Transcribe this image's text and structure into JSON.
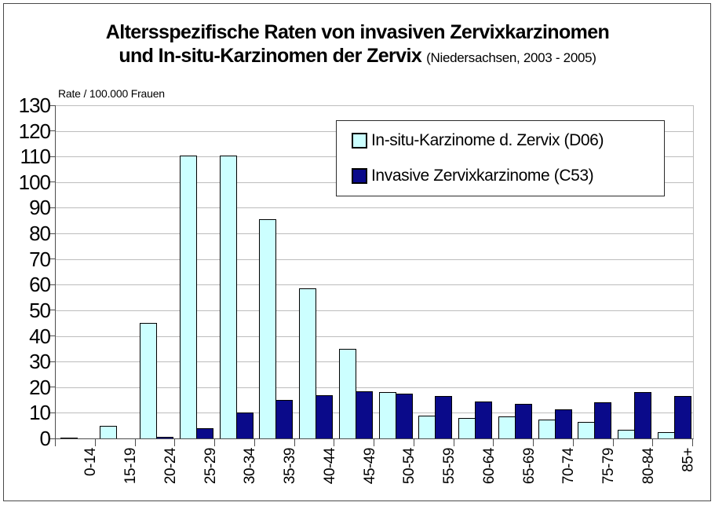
{
  "header": {
    "title_line1": "Altersspezifische Raten von invasiven Zervixkarzinomen",
    "title_line2": "und In-situ-Karzinomen der Zervix",
    "subtitle": "(Niedersachsen, 2003 - 2005)"
  },
  "chart_data": {
    "type": "bar",
    "title": "Altersspezifische Raten von invasiven Zervixkarzinomen und In-situ-Karzinomen der Zervix (Niedersachsen, 2003 - 2005)",
    "ylabel": "Rate / 100.000 Frauen",
    "xlabel": "",
    "categories": [
      "0-14",
      "15-19",
      "20-24",
      "25-29",
      "30-34",
      "35-39",
      "40-44",
      "45-49",
      "50-54",
      "55-59",
      "60-64",
      "65-69",
      "70-74",
      "75-79",
      "80-84",
      "85+"
    ],
    "series": [
      {
        "name": "In-situ-Karzinome d. Zervix (D06)",
        "color": "#CCFFFF",
        "values": [
          0.4,
          5,
          45,
          110.5,
          110.5,
          85.5,
          58.5,
          35,
          18,
          9,
          8,
          8.5,
          7.5,
          6.5,
          3.5,
          2.5
        ]
      },
      {
        "name": "Invasive Zervixkarzinome (C53)",
        "color": "#0A0A8A",
        "values": [
          0,
          0,
          0.6,
          4,
          10,
          15,
          17,
          18.5,
          17.5,
          16.5,
          14.5,
          13.5,
          11.5,
          14,
          18,
          16.5
        ]
      }
    ],
    "ylim": [
      0,
      130
    ],
    "ytick_step": 10,
    "grid": true,
    "legend_position": "top-right-inside",
    "colors": {
      "grid": "#bdbdbd",
      "axis": "#4d4d4d",
      "bar_border": "#000000",
      "background": "#ffffff"
    }
  }
}
